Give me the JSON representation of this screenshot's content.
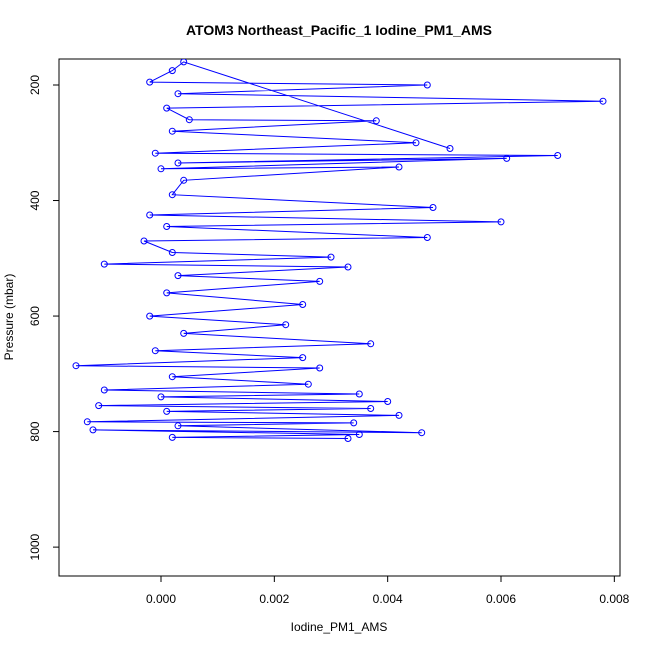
{
  "chart_data": {
    "type": "line",
    "title": "ATOM3 Northeast_Pacific_1 Iodine_PM1_AMS",
    "xlabel": "Iodine_PM1_AMS",
    "ylabel": "Pressure (mbar)",
    "xlim": [
      -0.0018,
      0.0081
    ],
    "ylim": [
      1050,
      155
    ],
    "y_reversed": true,
    "x_ticks": [
      0.0,
      0.002,
      0.004,
      0.006,
      0.008
    ],
    "x_tick_labels": [
      "0.000",
      "0.002",
      "0.004",
      "0.006",
      "0.008"
    ],
    "y_ticks": [
      200,
      400,
      600,
      800,
      1000
    ],
    "y_tick_labels": [
      "200",
      "400",
      "600",
      "800",
      "1000"
    ],
    "grid": false,
    "legend": "none",
    "series": [
      {
        "style": "lines+open-circles",
        "color": "#0000ff",
        "points": [
          [
            0.0051,
            310
          ],
          [
            0.0004,
            160
          ],
          [
            0.0002,
            175
          ],
          [
            -0.0002,
            195
          ],
          [
            0.0047,
            200
          ],
          [
            0.0003,
            215
          ],
          [
            0.0078,
            228
          ],
          [
            0.0001,
            240
          ],
          [
            0.0005,
            260
          ],
          [
            0.0038,
            262
          ],
          [
            0.0002,
            280
          ],
          [
            0.0045,
            300
          ],
          [
            -0.0001,
            318
          ],
          [
            0.007,
            322
          ],
          [
            0.0003,
            335
          ],
          [
            0.0061,
            327
          ],
          [
            0.0,
            345
          ],
          [
            0.0042,
            342
          ],
          [
            0.0004,
            365
          ],
          [
            0.0002,
            390
          ],
          [
            0.0048,
            412
          ],
          [
            -0.0002,
            425
          ],
          [
            0.006,
            437
          ],
          [
            0.0001,
            445
          ],
          [
            0.0047,
            464
          ],
          [
            -0.0003,
            470
          ],
          [
            0.0002,
            490
          ],
          [
            0.003,
            498
          ],
          [
            -0.001,
            510
          ],
          [
            0.0033,
            515
          ],
          [
            0.0003,
            530
          ],
          [
            0.0028,
            540
          ],
          [
            0.0001,
            560
          ],
          [
            0.0025,
            580
          ],
          [
            -0.0002,
            600
          ],
          [
            0.0022,
            615
          ],
          [
            0.0004,
            630
          ],
          [
            0.0037,
            648
          ],
          [
            -0.0001,
            660
          ],
          [
            0.0025,
            672
          ],
          [
            -0.0015,
            686
          ],
          [
            0.0028,
            690
          ],
          [
            0.0002,
            705
          ],
          [
            0.0026,
            718
          ],
          [
            -0.001,
            728
          ],
          [
            0.0035,
            735
          ],
          [
            0.0,
            740
          ],
          [
            0.004,
            748
          ],
          [
            -0.0011,
            755
          ],
          [
            0.0037,
            760
          ],
          [
            0.0001,
            765
          ],
          [
            0.0042,
            772
          ],
          [
            -0.0013,
            783
          ],
          [
            0.0034,
            785
          ],
          [
            0.0003,
            790
          ],
          [
            0.0046,
            802
          ],
          [
            -0.0012,
            797
          ],
          [
            0.0035,
            805
          ],
          [
            0.0002,
            810
          ],
          [
            0.0033,
            812
          ]
        ]
      }
    ]
  }
}
